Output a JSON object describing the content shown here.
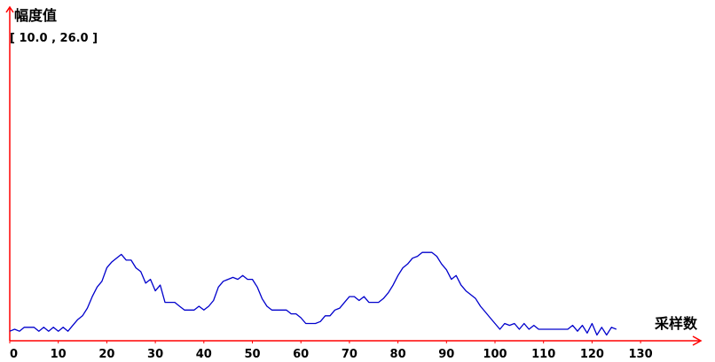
{
  "chart_data": {
    "type": "line",
    "title": "",
    "ylabel": "幅度值",
    "xlabel": "采样数",
    "range_label": "[ 10.0 , 26.0 ]",
    "xlim": [
      0,
      130
    ],
    "xticks": [
      "0",
      "10",
      "20",
      "30",
      "40",
      "50",
      "60",
      "70",
      "80",
      "90",
      "100",
      "110",
      "120",
      "130"
    ],
    "ylim": [
      10.0,
      26.0
    ],
    "grid": false,
    "legend": "none",
    "axis_color": "#ff0000",
    "series": [
      {
        "color": "#0000cc",
        "x": [
          0,
          1,
          2,
          3,
          4,
          5,
          6,
          7,
          8,
          9,
          10,
          11,
          12,
          13,
          14,
          15,
          16,
          17,
          18,
          19,
          20,
          21,
          22,
          23,
          24,
          25,
          26,
          27,
          28,
          29,
          30,
          31,
          32,
          33,
          34,
          35,
          36,
          37,
          38,
          39,
          40,
          41,
          42,
          43,
          44,
          45,
          46,
          47,
          48,
          49,
          50,
          51,
          52,
          53,
          54,
          55,
          56,
          57,
          58,
          59,
          60,
          61,
          62,
          63,
          64,
          65,
          66,
          67,
          68,
          69,
          70,
          71,
          72,
          73,
          74,
          75,
          76,
          77,
          78,
          79,
          80,
          81,
          82,
          83,
          84,
          85,
          86,
          87,
          88,
          89,
          90,
          91,
          92,
          93,
          94,
          95,
          96,
          97,
          98,
          99,
          100,
          101,
          102,
          103,
          104,
          105,
          106,
          107,
          108,
          109,
          110,
          111,
          112,
          113,
          114,
          115,
          116,
          117,
          118,
          119,
          120,
          121,
          122,
          123,
          124,
          125
        ],
        "y": [
          10.5,
          10.6,
          10.5,
          10.7,
          10.7,
          10.7,
          10.5,
          10.7,
          10.5,
          10.7,
          10.5,
          10.7,
          10.5,
          10.8,
          11.1,
          11.3,
          11.7,
          12.3,
          12.8,
          13.1,
          13.8,
          14.1,
          14.3,
          14.5,
          14.2,
          14.2,
          13.8,
          13.6,
          13.0,
          13.2,
          12.6,
          12.9,
          12.0,
          12.0,
          12.0,
          11.8,
          11.6,
          11.6,
          11.6,
          11.8,
          11.6,
          11.8,
          12.1,
          12.8,
          13.1,
          13.2,
          13.3,
          13.2,
          13.4,
          13.2,
          13.2,
          12.8,
          12.2,
          11.8,
          11.6,
          11.6,
          11.6,
          11.6,
          11.4,
          11.4,
          11.2,
          10.9,
          10.9,
          10.9,
          11.0,
          11.3,
          11.3,
          11.6,
          11.7,
          12.0,
          12.3,
          12.3,
          12.1,
          12.3,
          12.0,
          12.0,
          12.0,
          12.2,
          12.5,
          12.9,
          13.4,
          13.8,
          14.0,
          14.3,
          14.4,
          14.6,
          14.6,
          14.6,
          14.4,
          14.0,
          13.7,
          13.2,
          13.4,
          12.9,
          12.6,
          12.4,
          12.2,
          11.8,
          11.5,
          11.2,
          10.9,
          10.6,
          10.9,
          10.8,
          10.9,
          10.6,
          10.9,
          10.6,
          10.8,
          10.6,
          10.6,
          10.6,
          10.6,
          10.6,
          10.6,
          10.6,
          10.8,
          10.5,
          10.8,
          10.4,
          10.9,
          10.3,
          10.7,
          10.3,
          10.7,
          10.6
        ]
      }
    ]
  }
}
